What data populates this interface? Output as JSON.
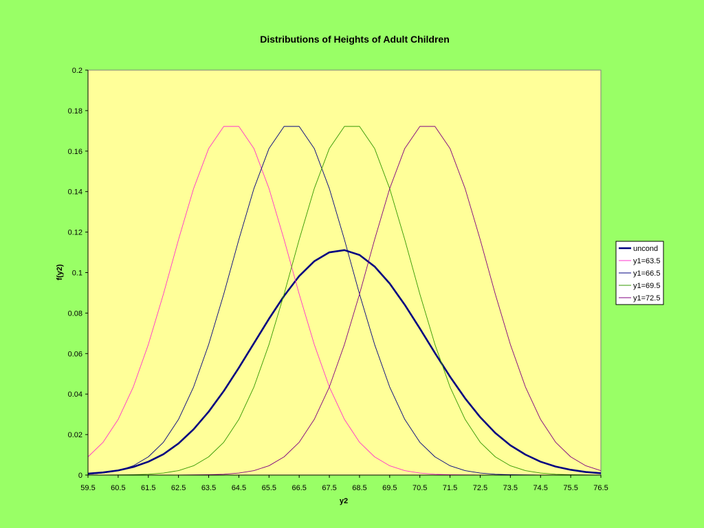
{
  "chart_data": {
    "type": "line",
    "title": "Distributions of Heights of Adult Children",
    "xlabel": "y2",
    "ylabel": "f(y2)",
    "xlim": [
      59.5,
      76.5
    ],
    "ylim": [
      0,
      0.2
    ],
    "x_ticks": [
      59.5,
      60.5,
      61.5,
      62.5,
      63.5,
      64.5,
      65.5,
      66.5,
      67.5,
      68.5,
      69.5,
      70.5,
      71.5,
      72.5,
      73.5,
      74.5,
      75.5,
      76.5
    ],
    "x_tick_labels": [
      "59.5",
      "60.5",
      "61.5",
      "62.5",
      "63.5",
      "64.5",
      "65.5",
      "66.5",
      "67.5",
      "68.5",
      "69.5",
      "70.5",
      "71.5",
      "72.5",
      "73.5",
      "74.5",
      "75.5",
      "76.5"
    ],
    "y_ticks": [
      0,
      0.02,
      0.04,
      0.06,
      0.08,
      0.1,
      0.12,
      0.14,
      0.16,
      0.18,
      0.2
    ],
    "y_tick_labels": [
      "0",
      "0.02",
      "0.04",
      "0.06",
      "0.08",
      "0.1",
      "0.12",
      "0.14",
      "0.16",
      "0.18",
      "0.2"
    ],
    "legend_position": "right",
    "plot_background": "#ffff99",
    "series": [
      {
        "name": "uncond",
        "color": "#000080",
        "bold": true,
        "x": [
          59.5,
          60.0,
          60.5,
          61.0,
          61.5,
          62.0,
          62.5,
          63.0,
          63.5,
          64.0,
          64.5,
          65.0,
          65.5,
          66.0,
          66.5,
          67.0,
          67.5,
          68.0,
          68.5,
          69.0,
          69.5,
          70.0,
          70.5,
          71.0,
          71.5,
          72.0,
          72.5,
          73.0,
          73.5,
          74.0,
          74.5,
          75.0,
          75.5,
          76.0,
          76.5
        ],
        "values": [
          0.0007,
          0.0013,
          0.0023,
          0.004,
          0.0066,
          0.0103,
          0.0156,
          0.0226,
          0.0313,
          0.0415,
          0.053,
          0.0651,
          0.0772,
          0.0885,
          0.0983,
          0.1056,
          0.11,
          0.1111,
          0.1087,
          0.103,
          0.0946,
          0.0841,
          0.0724,
          0.0603,
          0.0486,
          0.0379,
          0.0286,
          0.0208,
          0.0147,
          0.0101,
          0.0066,
          0.0042,
          0.0026,
          0.0015,
          0.0009
        ]
      },
      {
        "name": "y1=63.5",
        "color": "#ff33cc",
        "x": [
          59.5,
          60.0,
          60.5,
          61.0,
          61.5,
          62.0,
          62.5,
          63.0,
          63.5,
          64.0,
          64.5,
          65.0,
          65.5,
          66.0,
          66.5,
          67.0,
          67.5,
          68.0,
          68.5,
          69.0,
          69.5,
          70.0,
          70.5,
          71.0,
          71.5,
          72.0,
          72.5,
          73.0,
          73.5,
          74.0,
          74.5,
          75.0,
          75.5,
          76.0,
          76.5
        ],
        "values": [
          0.009,
          0.0162,
          0.0275,
          0.0435,
          0.0645,
          0.0894,
          0.1163,
          0.1415,
          0.1613,
          0.1722,
          0.1722,
          0.1613,
          0.1415,
          0.1163,
          0.0894,
          0.0645,
          0.0435,
          0.0275,
          0.0162,
          0.009,
          0.0046,
          0.0022,
          0.001,
          0.0004,
          0.0002,
          0.0001,
          0.0,
          0.0,
          0.0,
          0.0,
          0.0,
          0.0,
          0.0,
          0.0,
          0.0
        ]
      },
      {
        "name": "y1=66.5",
        "color": "#000080",
        "x": [
          59.5,
          60.0,
          60.5,
          61.0,
          61.5,
          62.0,
          62.5,
          63.0,
          63.5,
          64.0,
          64.5,
          65.0,
          65.5,
          66.0,
          66.5,
          67.0,
          67.5,
          68.0,
          68.5,
          69.0,
          69.5,
          70.0,
          70.5,
          71.0,
          71.5,
          72.0,
          72.5,
          73.0,
          73.5,
          74.0,
          74.5,
          75.0,
          75.5,
          76.0,
          76.5
        ],
        "values": [
          0.0004,
          0.001,
          0.0022,
          0.0046,
          0.009,
          0.0162,
          0.0275,
          0.0435,
          0.0645,
          0.0894,
          0.1163,
          0.1415,
          0.1613,
          0.1722,
          0.1722,
          0.1613,
          0.1415,
          0.1163,
          0.0894,
          0.0645,
          0.0435,
          0.0275,
          0.0162,
          0.009,
          0.0046,
          0.0022,
          0.001,
          0.0004,
          0.0002,
          0.0001,
          0.0,
          0.0,
          0.0,
          0.0,
          0.0
        ]
      },
      {
        "name": "y1=69.5",
        "color": "#339900",
        "x": [
          59.5,
          60.0,
          60.5,
          61.0,
          61.5,
          62.0,
          62.5,
          63.0,
          63.5,
          64.0,
          64.5,
          65.0,
          65.5,
          66.0,
          66.5,
          67.0,
          67.5,
          68.0,
          68.5,
          69.0,
          69.5,
          70.0,
          70.5,
          71.0,
          71.5,
          72.0,
          72.5,
          73.0,
          73.5,
          74.0,
          74.5,
          75.0,
          75.5,
          76.0,
          76.5
        ],
        "values": [
          0.0,
          0.0,
          0.0001,
          0.0002,
          0.0004,
          0.001,
          0.0022,
          0.0046,
          0.009,
          0.0162,
          0.0275,
          0.0435,
          0.0645,
          0.0894,
          0.1163,
          0.1415,
          0.1613,
          0.1722,
          0.1722,
          0.1613,
          0.1415,
          0.1163,
          0.0894,
          0.0645,
          0.0435,
          0.0275,
          0.0162,
          0.009,
          0.0046,
          0.0022,
          0.001,
          0.0004,
          0.0002,
          0.0001,
          0.0
        ]
      },
      {
        "name": "y1=72.5",
        "color": "#800080",
        "x": [
          59.5,
          60.0,
          60.5,
          61.0,
          61.5,
          62.0,
          62.5,
          63.0,
          63.5,
          64.0,
          64.5,
          65.0,
          65.5,
          66.0,
          66.5,
          67.0,
          67.5,
          68.0,
          68.5,
          69.0,
          69.5,
          70.0,
          70.5,
          71.0,
          71.5,
          72.0,
          72.5,
          73.0,
          73.5,
          74.0,
          74.5,
          75.0,
          75.5,
          76.0,
          76.5
        ],
        "values": [
          0.0,
          0.0,
          0.0,
          0.0,
          0.0,
          0.0,
          0.0,
          0.0001,
          0.0002,
          0.0004,
          0.001,
          0.0022,
          0.0046,
          0.009,
          0.0162,
          0.0275,
          0.0435,
          0.0645,
          0.0894,
          0.1163,
          0.1415,
          0.1613,
          0.1722,
          0.1722,
          0.1613,
          0.1415,
          0.1163,
          0.0894,
          0.0645,
          0.0435,
          0.0275,
          0.0162,
          0.009,
          0.0046,
          0.0022
        ]
      }
    ]
  }
}
